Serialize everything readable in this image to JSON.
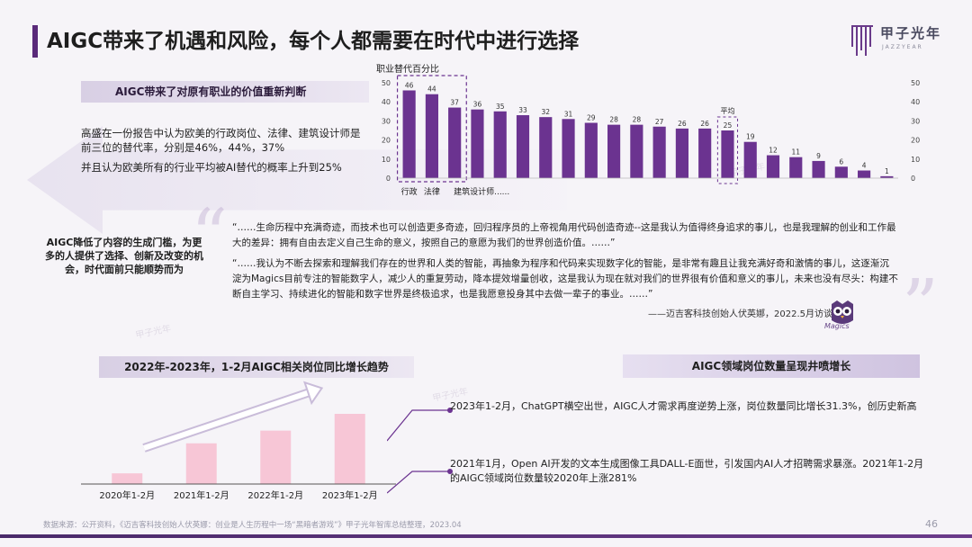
{
  "header": {
    "title": "AIGC带来了机遇和风险，每个人都需要在时代中进行选择",
    "logo_text": "甲子光年",
    "logo_sub": "JAZZYEAR"
  },
  "section1": {
    "label": "AIGC带来了对原有职业的价值重新判断",
    "para1": "高盛在一份报告中认为欧美的行政岗位、法律、建筑设计师是前三位的替代率，分别是46%，44%，37%",
    "para2": "并且认为欧美所有的行业平均被AI替代的概率上升到25%"
  },
  "chart_data": [
    {
      "type": "bar",
      "title": "职业替代百分比",
      "categories": [
        "行政",
        "法律",
        "建筑设计师",
        "",
        "",
        "",
        "",
        "",
        "",
        "",
        "",
        "",
        "",
        "",
        "平均",
        "",
        "",
        "",
        "",
        "",
        "",
        ""
      ],
      "values": [
        46,
        44,
        37,
        36,
        35,
        33,
        32,
        31,
        29,
        28,
        28,
        27,
        26,
        26,
        25,
        19,
        12,
        11,
        9,
        6,
        4,
        1
      ],
      "category_note": "建筑设计师......",
      "highlight": [
        0,
        1,
        2
      ],
      "average_index": 14,
      "average_label": "平均",
      "ylim": [
        0,
        50
      ],
      "yticks": [
        0,
        10,
        20,
        30,
        40,
        50
      ],
      "bar_color": "#6b3390",
      "grid": false
    },
    {
      "type": "bar",
      "title": "2022年-2023年，1-2月AIGC相关岗位同比增长趋势",
      "categories": [
        "2020年1-2月",
        "2021年1-2月",
        "2022年1-2月",
        "2023年1-2月"
      ],
      "values": [
        1.0,
        3.81,
        5.0,
        6.57
      ],
      "value_note": "无数值标注，按相对高度估计",
      "bar_color": "#f7c6d6",
      "trend_arrow": true
    }
  ],
  "quote": {
    "p1": "“……生命历程中充满奇迹，而技术也可以创造更多奇迹，回归程序员的上帝视角用代码创造奇迹--这是我认为值得终身追求的事儿，也是我理解的创业和工作最大的差异：拥有自由去定义自己生命的意义，按照自己的意愿为我们的世界创造价值。……”",
    "p2": "“……我认为不断去探索和理解我们存在的世界和人类的智能，再抽象为程序和代码来实现数字化的智能，是非常有趣且让我充满好奇和激情的事儿，这逐渐沉淀为Magics目前专注的智能数字人，减少人的重复劳动，降本提效增量创收，这是我认为现在就对我们的世界很有价值和意义的事儿，未来也没有尽头：构建不断自主学习、持续进化的智能和数字世界是终极追求，也是我愿意投身其中去做一辈子的事业。……”",
    "attribution": "——迈吉客科技创始人伏英娜，2022.5月访谈",
    "logo_label": "Magics"
  },
  "aigc_lowered": "AIGC降低了内容的生成门槛，为更多的人提供了选择、创新及改变的机会，时代面前只能顺势而为",
  "growth": {
    "title": "AIGC领域岗位数量呈现井喷增长",
    "note1": "2023年1-2月，ChatGPT横空出世，AIGC人才需求再度逆势上涨，岗位数量同比增长31.3%，创历史新高",
    "note2": "2021年1月，Open AI开发的文本生成图像工具DALL-E面世，引发国内AI人才招聘需求暴涨。2021年1-2月的AIGC领域岗位数量较2020年上涨281%"
  },
  "footer": {
    "source": "数据来源：公开资料，《迈吉客科技创始人伏英娜：创业是人生历程中一场“黑暗者游戏”》甲子光年智库总结整理，2023.04",
    "page": "46"
  },
  "colors": {
    "accent": "#5a2a7a",
    "bar": "#6b3390",
    "trend_bar": "#f7c6d6"
  }
}
